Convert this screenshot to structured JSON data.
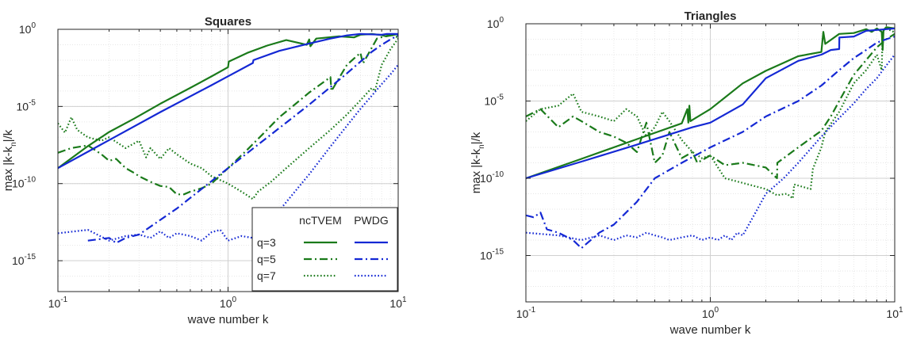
{
  "chart_data": [
    {
      "type": "line",
      "title": "Squares",
      "xlabel": "wave number k",
      "ylabel": "max |k-k_n|/k",
      "ylabel_parts": {
        "main": "max |k-k",
        "sub": "n",
        "tail": "|/k"
      },
      "xscale": "log",
      "yscale": "log",
      "xlim": [
        0.1,
        10
      ],
      "ylim": [
        1e-17,
        1
      ],
      "xticks": [
        {
          "base": "10",
          "exp": "-1",
          "value": 0.1
        },
        {
          "base": "10",
          "exp": "0",
          "value": 1
        },
        {
          "base": "10",
          "exp": "1",
          "value": 10
        }
      ],
      "yticks": [
        {
          "base": "10",
          "exp": "-15",
          "value": 1e-15
        },
        {
          "base": "10",
          "exp": "-10",
          "value": 1e-10
        },
        {
          "base": "10",
          "exp": "-5",
          "value": 1e-05
        },
        {
          "base": "10",
          "exp": "0",
          "value": 1
        }
      ],
      "grid": true,
      "legend": {
        "placement": "bottom-right",
        "col_headers": [
          "ncTVEM",
          "PWDG"
        ],
        "row_labels": [
          "q=3",
          "q=5",
          "q=7"
        ]
      },
      "series": [
        {
          "method": "ncTVEM",
          "q": "q=3",
          "color": "#1a7a1a",
          "dash": "solid",
          "x": [
            0.1,
            0.15,
            0.2,
            0.28,
            0.4,
            0.6,
            0.8,
            1.0,
            1.01,
            1.3,
            1.7,
            2.2,
            2.9,
            3.0,
            3.05,
            3.3,
            4.5,
            5.5,
            6.0,
            7.0,
            8.0,
            8.5,
            10
          ],
          "y": [
            1e-09,
            2.7e-08,
            2.2e-07,
            1.6e-06,
            1.5e-05,
            0.00016,
            0.00089,
            0.0035,
            0.008,
            0.03,
            0.089,
            0.2,
            0.1,
            0.22,
            0.08,
            0.25,
            0.35,
            0.3,
            0.45,
            0.5,
            0.42,
            0.35,
            0.5
          ]
        },
        {
          "method": "ncTVEM",
          "q": "q=5",
          "color": "#1a7a1a",
          "dash": "dashdot",
          "x": [
            0.1,
            0.12,
            0.15,
            0.18,
            0.2,
            0.22,
            0.25,
            0.28,
            0.3,
            0.35,
            0.4,
            0.45,
            0.5,
            0.55,
            0.6,
            0.7,
            0.8,
            1.0,
            1.3,
            1.6,
            2.0,
            2.5,
            3.0,
            4.0,
            4.05,
            5.0,
            6.0,
            6.2,
            7.5,
            9.0,
            10
          ],
          "y": [
            1e-08,
            2e-08,
            3e-08,
            8e-09,
            3e-09,
            4e-09,
            1e-09,
            5e-10,
            3e-10,
            1.3e-10,
            7e-11,
            6e-11,
            2e-11,
            2e-11,
            3e-11,
            5e-11,
            1e-10,
            1e-09,
            1.6e-08,
            1.6e-07,
            2e-06,
            1.5e-05,
            8e-05,
            0.0008,
            0.0001,
            0.005,
            0.03,
            0.006,
            0.25,
            0.45,
            0.3
          ]
        },
        {
          "method": "ncTVEM",
          "q": "q=7",
          "color": "#1a7a1a",
          "dash": "dotted",
          "x": [
            0.1,
            0.11,
            0.12,
            0.13,
            0.15,
            0.18,
            0.2,
            0.25,
            0.3,
            0.33,
            0.35,
            0.4,
            0.45,
            0.5,
            0.6,
            0.7,
            0.8,
            1.0,
            1.2,
            1.4,
            1.5,
            1.8,
            2.2,
            3.0,
            4.0,
            5.0,
            6.0,
            7.0,
            7.3,
            8.0,
            9.0,
            10
          ],
          "y": [
            8e-07,
            2e-07,
            2e-06,
            3e-07,
            1e-07,
            6e-08,
            1e-07,
            2e-08,
            6e-08,
            5e-09,
            2e-08,
            4e-09,
            2e-08,
            8e-09,
            2e-09,
            1e-09,
            3e-10,
            1e-10,
            3e-11,
            1e-11,
            3e-11,
            1.4e-10,
            1e-09,
            2e-08,
            3e-07,
            3e-06,
            2.5e-05,
            0.00016,
            0.0001,
            0.005,
            0.05,
            0.25
          ]
        },
        {
          "method": "PWDG",
          "q": "q=3",
          "color": "#1428d4",
          "dash": "solid",
          "x": [
            0.1,
            0.2,
            0.4,
            0.8,
            1.0,
            1.4,
            1.41,
            2.0,
            3.0,
            4.0,
            5.0,
            6.0,
            8.0,
            8.5,
            10
          ],
          "y": [
            1e-09,
            6.6e-08,
            4.3e-06,
            0.00024,
            0.0009,
            0.0066,
            0.01,
            0.04,
            0.12,
            0.25,
            0.4,
            0.5,
            0.45,
            0.5,
            0.5
          ]
        },
        {
          "method": "PWDG",
          "q": "q=5",
          "color": "#1428d4",
          "dash": "dashdot",
          "x": [
            0.15,
            0.2,
            0.22,
            0.25,
            0.3,
            0.5,
            1.0,
            2.0,
            3.0,
            4.0,
            5.0,
            6.0,
            7.0,
            8.0,
            9.0,
            10
          ],
          "y": [
            2e-14,
            3e-14,
            1.4e-14,
            3e-14,
            5e-14,
            2.4e-12,
            1e-09,
            4e-07,
            1.3e-05,
            0.00018,
            0.0014,
            0.008,
            0.035,
            0.1,
            0.22,
            0.4
          ]
        },
        {
          "method": "PWDG",
          "q": "q=7",
          "color": "#1428d4",
          "dash": "dotted",
          "x": [
            0.1,
            0.15,
            0.2,
            0.25,
            0.3,
            0.35,
            0.4,
            0.45,
            0.5,
            0.6,
            0.7,
            0.8,
            0.9,
            1.0,
            1.2,
            1.4,
            1.6,
            2.0,
            3.0,
            4.0,
            5.0,
            6.0,
            7.0,
            8.0,
            9.0,
            10
          ],
          "y": [
            6e-14,
            1e-13,
            2e-14,
            4e-14,
            5e-14,
            3e-14,
            8e-14,
            3e-14,
            6e-14,
            4e-14,
            2e-14,
            7e-14,
            1e-13,
            2e-14,
            4e-14,
            3e-14,
            1e-13,
            1.8e-12,
            4e-10,
            2.5e-08,
            5.6e-07,
            7e-06,
            5e-05,
            0.00028,
            0.0012,
            0.005
          ]
        }
      ]
    },
    {
      "type": "line",
      "title": "Triangles",
      "xlabel": "wave number k",
      "ylabel": "max |k-k_n|/k",
      "ylabel_parts": {
        "main": "max |k-k",
        "sub": "n",
        "tail": "|/k"
      },
      "xscale": "log",
      "yscale": "log",
      "xlim": [
        0.1,
        10
      ],
      "ylim": [
        1e-18,
        1
      ],
      "xticks": [
        {
          "base": "10",
          "exp": "-1",
          "value": 0.1
        },
        {
          "base": "10",
          "exp": "0",
          "value": 1
        },
        {
          "base": "10",
          "exp": "1",
          "value": 10
        }
      ],
      "yticks": [
        {
          "base": "10",
          "exp": "-15",
          "value": 1e-15
        },
        {
          "base": "10",
          "exp": "-10",
          "value": 1e-10
        },
        {
          "base": "10",
          "exp": "-5",
          "value": 1e-05
        },
        {
          "base": "10",
          "exp": "0",
          "value": 1
        }
      ],
      "grid": true,
      "series": [
        {
          "method": "ncTVEM",
          "q": "q=3",
          "color": "#1a7a1a",
          "dash": "solid",
          "x": [
            0.1,
            0.2,
            0.4,
            0.7,
            0.75,
            0.76,
            0.77,
            0.78,
            0.8,
            1.0,
            1.5,
            2.0,
            2.5,
            3.0,
            4.0,
            4.1,
            4.2,
            5.0,
            6.0,
            7.0,
            7.5,
            8.0,
            8.5,
            8.6,
            8.7,
            9.0,
            10
          ],
          "y": [
            1e-10,
            1.8e-09,
            3.4e-08,
            3.6e-07,
            3e-06,
            4e-07,
            5e-06,
            5e-07,
            6e-07,
            3e-06,
            0.00014,
            0.0009,
            0.003,
            0.008,
            0.015,
            0.3,
            0.05,
            0.22,
            0.25,
            0.45,
            0.3,
            0.5,
            0.3,
            0.02,
            0.4,
            0.6,
            0.5
          ]
        },
        {
          "method": "ncTVEM",
          "q": "q=5",
          "color": "#1a7a1a",
          "dash": "dashdot",
          "x": [
            0.1,
            0.12,
            0.15,
            0.18,
            0.2,
            0.25,
            0.3,
            0.35,
            0.4,
            0.45,
            0.5,
            0.55,
            0.6,
            0.7,
            0.8,
            0.85,
            1.0,
            1.2,
            1.5,
            2.0,
            2.3,
            2.31,
            3.0,
            4.0,
            4.5,
            5.0,
            6.0,
            8.0,
            9.0,
            10
          ],
          "y": [
            1e-06,
            3e-06,
            2e-07,
            1e-06,
            5e-07,
            1e-07,
            5e-08,
            2e-08,
            5e-09,
            4e-07,
            1e-09,
            3e-09,
            1e-07,
            2e-09,
            5e-09,
            1e-09,
            3e-09,
            7e-10,
            1e-09,
            5e-10,
            1e-10,
            1e-09,
            1e-08,
            1.2e-07,
            1e-06,
            1e-05,
            0.0005,
            0.03,
            0.1,
            0.22
          ]
        },
        {
          "method": "ncTVEM",
          "q": "q=7",
          "color": "#1a7a1a",
          "dash": "dotted",
          "x": [
            0.1,
            0.12,
            0.15,
            0.18,
            0.2,
            0.25,
            0.3,
            0.35,
            0.4,
            0.45,
            0.5,
            0.55,
            0.6,
            0.7,
            0.8,
            0.9,
            1.0,
            1.2,
            1.5,
            2.0,
            2.3,
            2.6,
            2.8,
            2.85,
            3.5,
            3.6,
            4.0,
            4.2,
            5.0,
            6.0,
            7.0,
            8.0,
            8.5,
            8.6,
            9.0,
            10
          ],
          "y": [
            5e-07,
            3e-06,
            5e-06,
            3e-05,
            2e-06,
            1e-06,
            5e-07,
            3e-06,
            1e-06,
            5e-08,
            2e-07,
            2e-06,
            5e-07,
            3e-08,
            5e-09,
            2e-09,
            3e-09,
            1e-10,
            5e-11,
            2e-11,
            8e-12,
            1e-11,
            5e-12,
            4e-11,
            2e-11,
            4e-10,
            1e-08,
            1e-07,
            2e-06,
            0.00014,
            0.001,
            0.01,
            0.001,
            0.35,
            0.5,
            0.28
          ]
        },
        {
          "method": "PWDG",
          "q": "q=3",
          "color": "#1428d4",
          "dash": "solid",
          "x": [
            0.1,
            0.2,
            0.4,
            0.8,
            1.0,
            1.5,
            2.0,
            3.0,
            4.0,
            4.5,
            5.0,
            5.01,
            6.0,
            7.0,
            8.0,
            9.0,
            10
          ],
          "y": [
            1e-10,
            1.2e-09,
            1.5e-08,
            2e-07,
            4e-07,
            6e-06,
            0.0003,
            0.004,
            0.01,
            0.02,
            0.023,
            0.13,
            0.15,
            0.35,
            0.4,
            0.45,
            0.5
          ]
        },
        {
          "method": "PWDG",
          "q": "q=5",
          "color": "#1428d4",
          "dash": "dashdot",
          "x": [
            0.1,
            0.11,
            0.12,
            0.13,
            0.15,
            0.18,
            0.2,
            0.25,
            0.3,
            0.4,
            0.5,
            0.7,
            1.0,
            1.5,
            2.0,
            3.0,
            4.0,
            5.0,
            6.0,
            7.0,
            8.0,
            9.0,
            10
          ],
          "y": [
            4e-13,
            3e-13,
            6e-13,
            5e-14,
            3e-14,
            1e-14,
            3e-15,
            3e-14,
            1e-13,
            3e-12,
            1e-10,
            1e-09,
            1e-08,
            1e-07,
            1e-06,
            1e-05,
            0.0001,
            0.001,
            0.006,
            0.02,
            0.06,
            0.1,
            0.15
          ]
        },
        {
          "method": "PWDG",
          "q": "q=7",
          "color": "#1428d4",
          "dash": "dotted",
          "x": [
            0.1,
            0.15,
            0.2,
            0.25,
            0.3,
            0.35,
            0.4,
            0.45,
            0.5,
            0.55,
            0.6,
            0.7,
            0.8,
            0.9,
            1.0,
            1.1,
            1.2,
            1.3,
            1.4,
            1.5,
            1.8,
            2.0,
            2.5,
            3.0,
            4.0,
            5.0,
            6.0,
            7.0,
            8.0,
            9.0,
            10
          ],
          "y": [
            3e-14,
            2e-14,
            1e-14,
            2e-14,
            1e-14,
            2e-14,
            1.5e-14,
            3e-14,
            2e-14,
            1.5e-14,
            1e-14,
            1.5e-14,
            2e-14,
            1e-14,
            1.5e-14,
            1e-14,
            2e-14,
            1e-14,
            3e-14,
            2e-14,
            1e-12,
            1e-11,
            1e-10,
            1e-09,
            5e-08,
            8e-07,
            7e-06,
            6e-05,
            0.0003,
            0.002,
            0.01
          ]
        }
      ]
    }
  ]
}
